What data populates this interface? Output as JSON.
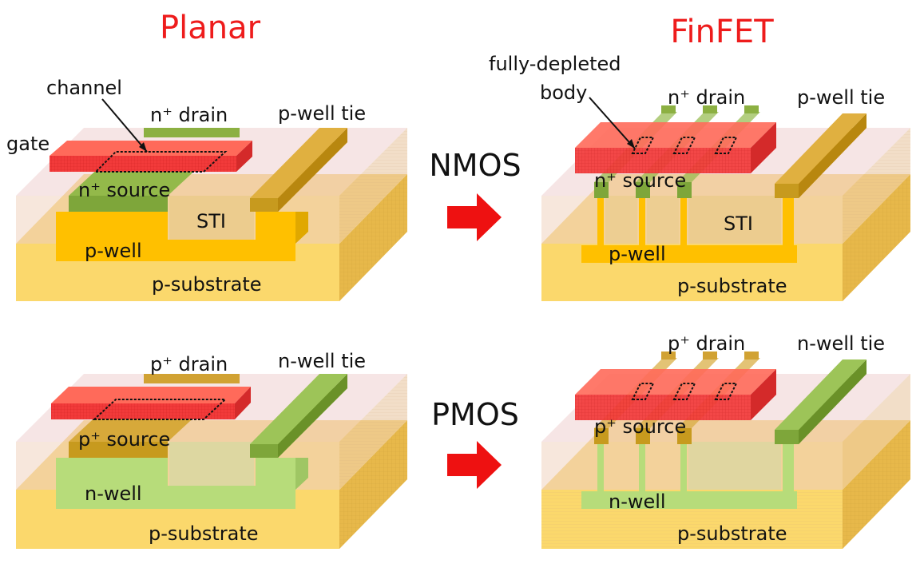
{
  "headers": {
    "planar": "Planar",
    "finfet": "FinFET"
  },
  "row_labels": {
    "nmos": "NMOS",
    "pmos": "PMOS"
  },
  "colors": {
    "header": "#ee1c1c",
    "gate": "#f23a3a",
    "n_plus": "#7ea63a",
    "p_plus": "#c79a1e",
    "p_well": "#ffc000",
    "n_well": "#b7dc7a",
    "sti": "#eacb8c",
    "substrate": "#fbd86c",
    "arrow": "#ee1111"
  },
  "planar_nmos": {
    "channel": "channel",
    "gate": "gate",
    "drain": "n⁺ drain",
    "well_tie": "p-well tie",
    "source": "n⁺ source",
    "sti": "STI",
    "well": "p-well",
    "substrate": "p-substrate"
  },
  "finfet_nmos": {
    "body": "fully-depleted body",
    "drain": "n⁺ drain",
    "well_tie": "p-well tie",
    "source": "n⁺ source",
    "sti": "STI",
    "well": "p-well",
    "substrate": "p-substrate"
  },
  "planar_pmos": {
    "drain": "p⁺ drain",
    "well_tie": "n-well tie",
    "source": "p⁺ source",
    "well": "n-well",
    "substrate": "p-substrate"
  },
  "finfet_pmos": {
    "drain": "p⁺ drain",
    "well_tie": "n-well tie",
    "source": "p⁺ source",
    "well": "n-well",
    "substrate": "p-substrate"
  }
}
